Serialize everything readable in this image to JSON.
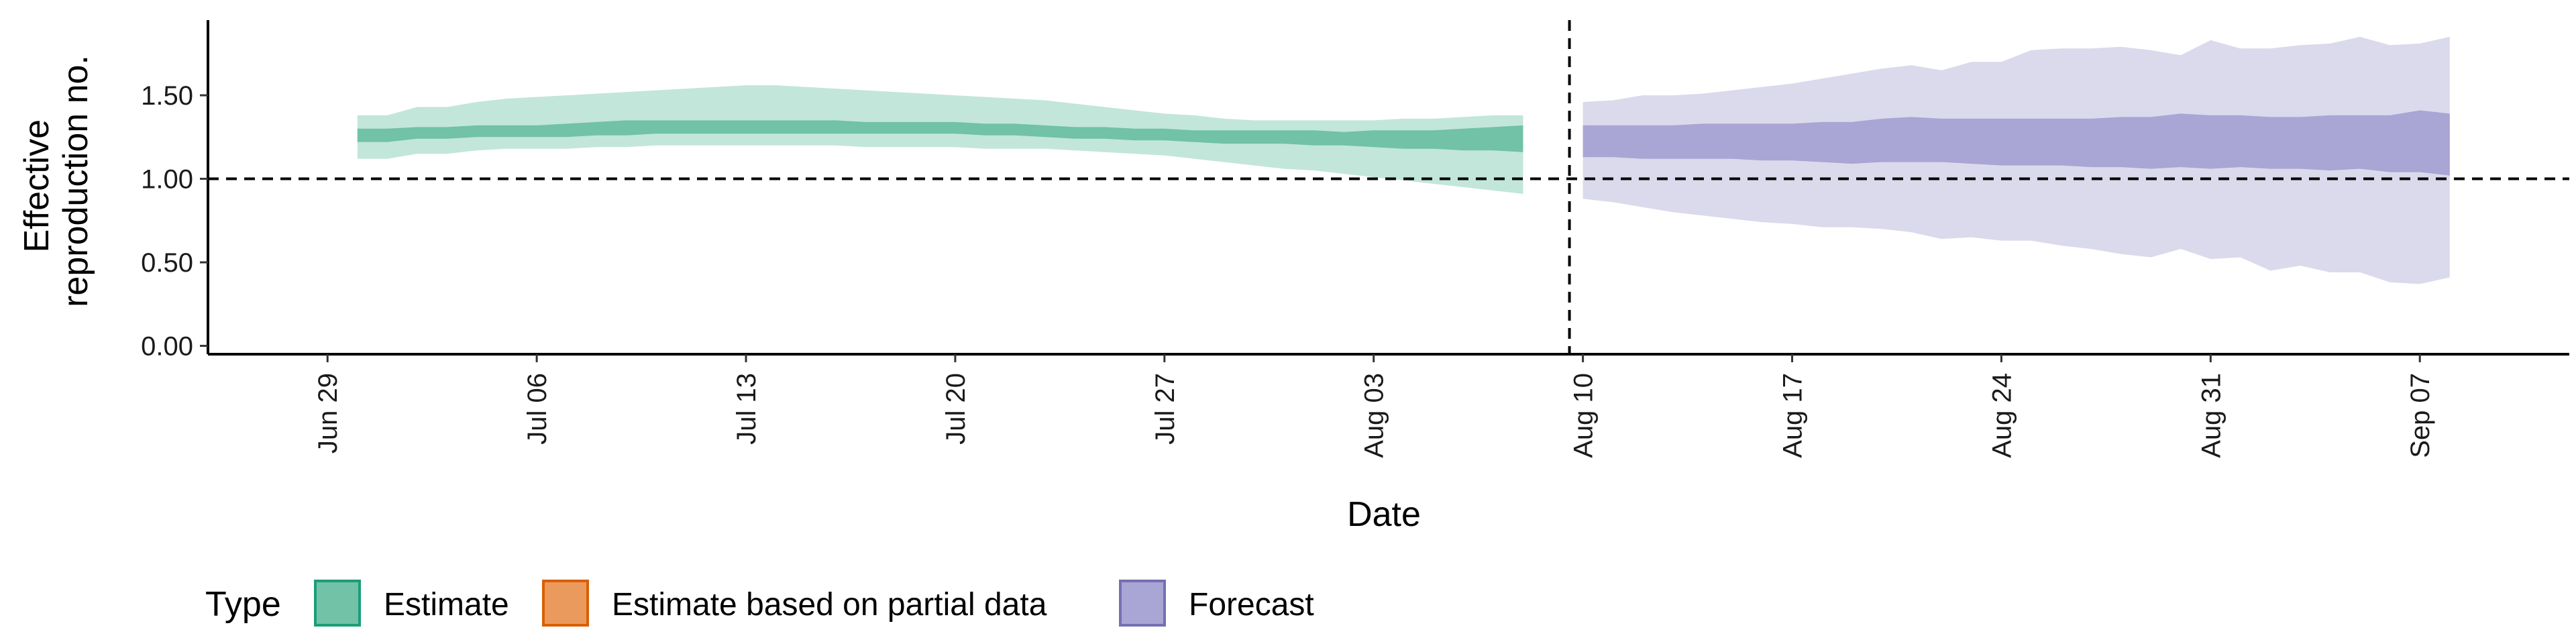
{
  "chart_data": {
    "type": "area",
    "xlabel": "Date",
    "ylabel_lines": [
      "Effective",
      "reproduction no."
    ],
    "ylim": [
      -0.05,
      1.95
    ],
    "yticks": [
      {
        "value": 0.0,
        "label": "0.00"
      },
      {
        "value": 0.5,
        "label": "0.50"
      },
      {
        "value": 1.0,
        "label": "1.00"
      },
      {
        "value": 1.5,
        "label": "1.50"
      }
    ],
    "xlim": [
      "2020-06-25",
      "2020-09-12"
    ],
    "xticks": [
      {
        "date": "2020-06-29",
        "label": "Jun 29"
      },
      {
        "date": "2020-07-06",
        "label": "Jul 06"
      },
      {
        "date": "2020-07-13",
        "label": "Jul 13"
      },
      {
        "date": "2020-07-20",
        "label": "Jul 20"
      },
      {
        "date": "2020-07-27",
        "label": "Jul 27"
      },
      {
        "date": "2020-08-03",
        "label": "Aug 03"
      },
      {
        "date": "2020-08-10",
        "label": "Aug 10"
      },
      {
        "date": "2020-08-17",
        "label": "Aug 17"
      },
      {
        "date": "2020-08-24",
        "label": "Aug 24"
      },
      {
        "date": "2020-08-31",
        "label": "Aug 31"
      },
      {
        "date": "2020-09-07",
        "label": "Sep 07"
      }
    ],
    "reference_lines": {
      "y": 1.0,
      "x_date": "2020-08-09"
    },
    "legend": {
      "title": "Type",
      "position": "bottom-left",
      "items": [
        {
          "label": "Estimate",
          "fill": "#71c2a7",
          "stroke": "#1b9e77"
        },
        {
          "label": "Estimate based on partial data",
          "fill": "#ea9a5c",
          "stroke": "#d95f02"
        },
        {
          "label": "Forecast",
          "fill": "#a9a5d4",
          "stroke": "#7570b3"
        }
      ]
    },
    "series": [
      {
        "name": "Estimate",
        "outer_color": "#c3e6da",
        "inner_color": "#71c2a7",
        "x": [
          "2020-06-30",
          "2020-07-01",
          "2020-07-02",
          "2020-07-03",
          "2020-07-04",
          "2020-07-05",
          "2020-07-06",
          "2020-07-07",
          "2020-07-08",
          "2020-07-09",
          "2020-07-10",
          "2020-07-11",
          "2020-07-12",
          "2020-07-13",
          "2020-07-14",
          "2020-07-15",
          "2020-07-16",
          "2020-07-17",
          "2020-07-18",
          "2020-07-19",
          "2020-07-20",
          "2020-07-21",
          "2020-07-22",
          "2020-07-23",
          "2020-07-24",
          "2020-07-25",
          "2020-07-26",
          "2020-07-27",
          "2020-07-28",
          "2020-07-29",
          "2020-07-30",
          "2020-07-31",
          "2020-08-01",
          "2020-08-02",
          "2020-08-03",
          "2020-08-04",
          "2020-08-05",
          "2020-08-06",
          "2020-08-07",
          "2020-08-08"
        ],
        "lower_90": [
          1.12,
          1.12,
          1.15,
          1.15,
          1.17,
          1.18,
          1.18,
          1.18,
          1.19,
          1.19,
          1.2,
          1.2,
          1.2,
          1.2,
          1.2,
          1.2,
          1.2,
          1.19,
          1.19,
          1.19,
          1.19,
          1.18,
          1.18,
          1.18,
          1.17,
          1.16,
          1.15,
          1.14,
          1.12,
          1.1,
          1.08,
          1.06,
          1.05,
          1.03,
          1.01,
          0.99,
          0.97,
          0.95,
          0.93,
          0.91
        ],
        "upper_90": [
          1.38,
          1.38,
          1.43,
          1.43,
          1.46,
          1.48,
          1.49,
          1.5,
          1.51,
          1.52,
          1.53,
          1.54,
          1.55,
          1.56,
          1.56,
          1.55,
          1.54,
          1.53,
          1.52,
          1.51,
          1.5,
          1.49,
          1.48,
          1.47,
          1.45,
          1.43,
          1.41,
          1.39,
          1.38,
          1.36,
          1.35,
          1.35,
          1.35,
          1.35,
          1.35,
          1.36,
          1.36,
          1.37,
          1.38,
          1.38
        ],
        "lower_50": [
          1.22,
          1.22,
          1.24,
          1.24,
          1.25,
          1.25,
          1.25,
          1.25,
          1.26,
          1.26,
          1.27,
          1.27,
          1.27,
          1.27,
          1.27,
          1.27,
          1.27,
          1.27,
          1.27,
          1.27,
          1.27,
          1.26,
          1.26,
          1.25,
          1.24,
          1.24,
          1.23,
          1.23,
          1.22,
          1.21,
          1.21,
          1.21,
          1.2,
          1.2,
          1.19,
          1.18,
          1.18,
          1.17,
          1.17,
          1.16
        ],
        "upper_50": [
          1.3,
          1.3,
          1.31,
          1.31,
          1.32,
          1.32,
          1.32,
          1.33,
          1.34,
          1.35,
          1.35,
          1.35,
          1.35,
          1.35,
          1.35,
          1.35,
          1.35,
          1.34,
          1.34,
          1.34,
          1.34,
          1.33,
          1.33,
          1.32,
          1.31,
          1.31,
          1.3,
          1.3,
          1.29,
          1.29,
          1.29,
          1.29,
          1.29,
          1.28,
          1.29,
          1.29,
          1.29,
          1.3,
          1.31,
          1.32
        ]
      },
      {
        "name": "Forecast",
        "outer_color": "#dbdaec",
        "inner_color": "#a9a5d4",
        "x": [
          "2020-08-10",
          "2020-08-11",
          "2020-08-12",
          "2020-08-13",
          "2020-08-14",
          "2020-08-15",
          "2020-08-16",
          "2020-08-17",
          "2020-08-18",
          "2020-08-19",
          "2020-08-20",
          "2020-08-21",
          "2020-08-22",
          "2020-08-23",
          "2020-08-24",
          "2020-08-25",
          "2020-08-26",
          "2020-08-27",
          "2020-08-28",
          "2020-08-29",
          "2020-08-30",
          "2020-08-31",
          "2020-09-01",
          "2020-09-02",
          "2020-09-03",
          "2020-09-04",
          "2020-09-05",
          "2020-09-06",
          "2020-09-07",
          "2020-09-08"
        ],
        "lower_90": [
          0.88,
          0.86,
          0.83,
          0.8,
          0.78,
          0.76,
          0.74,
          0.73,
          0.71,
          0.71,
          0.7,
          0.68,
          0.64,
          0.65,
          0.63,
          0.63,
          0.6,
          0.58,
          0.55,
          0.53,
          0.58,
          0.52,
          0.53,
          0.45,
          0.48,
          0.44,
          0.44,
          0.38,
          0.37,
          0.41
        ],
        "upper_90": [
          1.46,
          1.47,
          1.5,
          1.5,
          1.51,
          1.53,
          1.55,
          1.57,
          1.6,
          1.63,
          1.66,
          1.68,
          1.65,
          1.7,
          1.7,
          1.77,
          1.78,
          1.78,
          1.79,
          1.77,
          1.74,
          1.83,
          1.78,
          1.78,
          1.8,
          1.81,
          1.85,
          1.8,
          1.81,
          1.85
        ],
        "lower_50": [
          1.13,
          1.13,
          1.12,
          1.12,
          1.12,
          1.12,
          1.11,
          1.11,
          1.1,
          1.09,
          1.1,
          1.1,
          1.1,
          1.09,
          1.08,
          1.08,
          1.08,
          1.07,
          1.07,
          1.06,
          1.07,
          1.06,
          1.07,
          1.06,
          1.06,
          1.05,
          1.06,
          1.04,
          1.04,
          1.02
        ],
        "upper_50": [
          1.32,
          1.32,
          1.32,
          1.32,
          1.33,
          1.33,
          1.33,
          1.33,
          1.34,
          1.34,
          1.36,
          1.37,
          1.36,
          1.36,
          1.36,
          1.36,
          1.36,
          1.36,
          1.37,
          1.37,
          1.39,
          1.38,
          1.38,
          1.37,
          1.37,
          1.38,
          1.38,
          1.38,
          1.41,
          1.39
        ]
      }
    ]
  }
}
